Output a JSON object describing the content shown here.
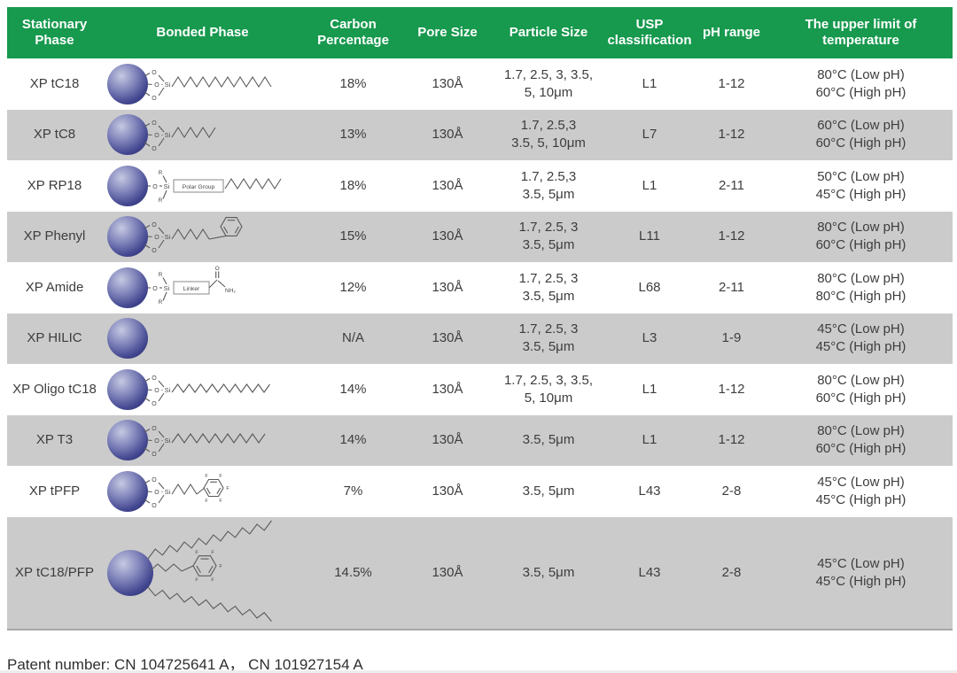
{
  "table": {
    "columns": [
      {
        "key": "name",
        "label": "Stationary\nPhase"
      },
      {
        "key": "bonded",
        "label": "Bonded Phase"
      },
      {
        "key": "carbon",
        "label": "Carbon\nPercentage"
      },
      {
        "key": "pore",
        "label": "Pore Size"
      },
      {
        "key": "particle",
        "label": "Particle Size"
      },
      {
        "key": "usp",
        "label": "USP\nclassification"
      },
      {
        "key": "ph",
        "label": "pH range"
      },
      {
        "key": "temp",
        "label": "The upper limit of\ntemperature"
      }
    ],
    "rows": [
      {
        "name": "XP tC18",
        "structure": "silica-O3-Si-C18-chain",
        "carbon": "18%",
        "pore": "130Å",
        "particle": [
          "1.7, 2.5, 3, 3.5,",
          "5, 10μm"
        ],
        "usp": "L1",
        "ph": "1-12",
        "temp": [
          "80°C (Low pH)",
          "60°C (High pH)"
        ]
      },
      {
        "name": "XP tC8",
        "structure": "silica-O3-Si-C8-chain",
        "carbon": "13%",
        "pore": "130Å",
        "particle": [
          "1.7, 2.5,3",
          "3.5, 5, 10μm"
        ],
        "usp": "L7",
        "ph": "1-12",
        "temp": [
          "60°C (Low pH)",
          "60°C (High pH)"
        ]
      },
      {
        "name": "XP RP18",
        "structure": "silica-O-Si-R2-polar-group-chain",
        "carbon": "18%",
        "pore": "130Å",
        "particle": [
          "1.7, 2.5,3",
          "3.5, 5μm"
        ],
        "usp": "L1",
        "ph": "2-11",
        "temp": [
          "50°C (Low pH)",
          "45°C (High pH)"
        ]
      },
      {
        "name": "XP Phenyl",
        "structure": "silica-O3-Si-phenyl-chain",
        "carbon": "15%",
        "pore": "130Å",
        "particle": [
          "1.7, 2.5, 3",
          "3.5, 5μm"
        ],
        "usp": "L11",
        "ph": "1-12",
        "temp": [
          "80°C (Low pH)",
          "60°C (High pH)"
        ]
      },
      {
        "name": "XP Amide",
        "structure": "silica-O-Si-R2-linker-amide",
        "carbon": "12%",
        "pore": "130Å",
        "particle": [
          "1.7, 2.5, 3",
          "3.5, 5μm"
        ],
        "usp": "L68",
        "ph": "2-11",
        "temp": [
          "80°C (Low pH)",
          "80°C (High pH)"
        ]
      },
      {
        "name": "XP HILIC",
        "structure": "silica-bare-sphere",
        "carbon": "N/A",
        "pore": "130Å",
        "particle": [
          "1.7, 2.5, 3",
          "3.5, 5μm"
        ],
        "usp": "L3",
        "ph": "1-9",
        "temp": [
          "45°C (Low pH)",
          "45°C (High pH)"
        ]
      },
      {
        "name": "XP Oligo tC18",
        "structure": "silica-O3-Si-oligo-C18-chain",
        "carbon": "14%",
        "pore": "130Å",
        "particle": [
          "1.7, 2.5, 3, 3.5,",
          "5, 10μm"
        ],
        "usp": "L1",
        "ph": "1-12",
        "temp": [
          "80°C (Low pH)",
          "60°C (High pH)"
        ]
      },
      {
        "name": "XP T3",
        "structure": "silica-O3-Si-T3-chain",
        "carbon": "14%",
        "pore": "130Å",
        "particle": [
          "3.5, 5μm"
        ],
        "usp": "L1",
        "ph": "1-12",
        "temp": [
          "80°C (Low pH)",
          "60°C (High pH)"
        ]
      },
      {
        "name": "XP tPFP",
        "structure": "silica-O3-Si-PFP-ring",
        "carbon": "7%",
        "pore": "130Å",
        "particle": [
          "3.5, 5μm"
        ],
        "usp": "L43",
        "ph": "2-8",
        "temp": [
          "45°C (Low pH)",
          "45°C (High pH)"
        ]
      },
      {
        "name": "XP tC18/PFP",
        "structure": "silica-C18-PFP-mixed-chains",
        "carbon": "14.5%",
        "pore": "130Å",
        "particle": [
          "3.5, 5μm"
        ],
        "usp": "L43",
        "ph": "2-8",
        "temp": [
          "45°C (Low pH)",
          "45°C (High pH)"
        ]
      }
    ]
  },
  "structure_glyphs": {
    "si": "Si",
    "o": "O",
    "r": "R",
    "f": "F",
    "carbonyl_o": "O",
    "nh2": "NH₂",
    "polar_group": "Polar Group",
    "linker": "Linker"
  },
  "footer": {
    "patent_label": "Patent number: CN 104725641 A， CN 101927154 A"
  },
  "colors": {
    "header_green": "#17994e",
    "row_gray": "#cbcbcb",
    "row_white": "#ffffff",
    "cell_text": "#3d3d3d",
    "sphere_highlight": "#c6c9e2",
    "sphere_dark": "#31357c",
    "structure_line": "#5a5a5a",
    "bottom_border": "#a8a8a8"
  }
}
